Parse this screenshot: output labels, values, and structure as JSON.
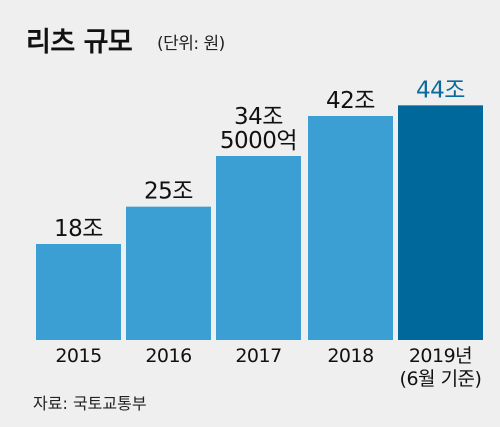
{
  "header": {
    "title": "리츠 규모",
    "subtitle": "(단위: 원)"
  },
  "source": {
    "label": "자료:",
    "value": "국토교통부"
  },
  "colors": {
    "background": "#f0efef",
    "bar": "#3b9fd4",
    "bar_highlight": "#00689b",
    "label": "#111111",
    "label_highlight": "#0b6a9c"
  },
  "chart_data": {
    "type": "bar",
    "title": "리츠 규모",
    "subtitle": "(단위: 원)",
    "categories": [
      "2015",
      "2016",
      "2017",
      "2018",
      "2019년\n(6월 기준)"
    ],
    "values": [
      18,
      25,
      34.5,
      42,
      44
    ],
    "unit": "조 원",
    "value_labels": [
      "18조",
      "25조",
      "34조\n5000억",
      "42조",
      "44조"
    ],
    "highlight_index": 4,
    "ylim": [
      0,
      48
    ],
    "grid": false,
    "legend": "none",
    "xlabel": "",
    "ylabel": ""
  }
}
